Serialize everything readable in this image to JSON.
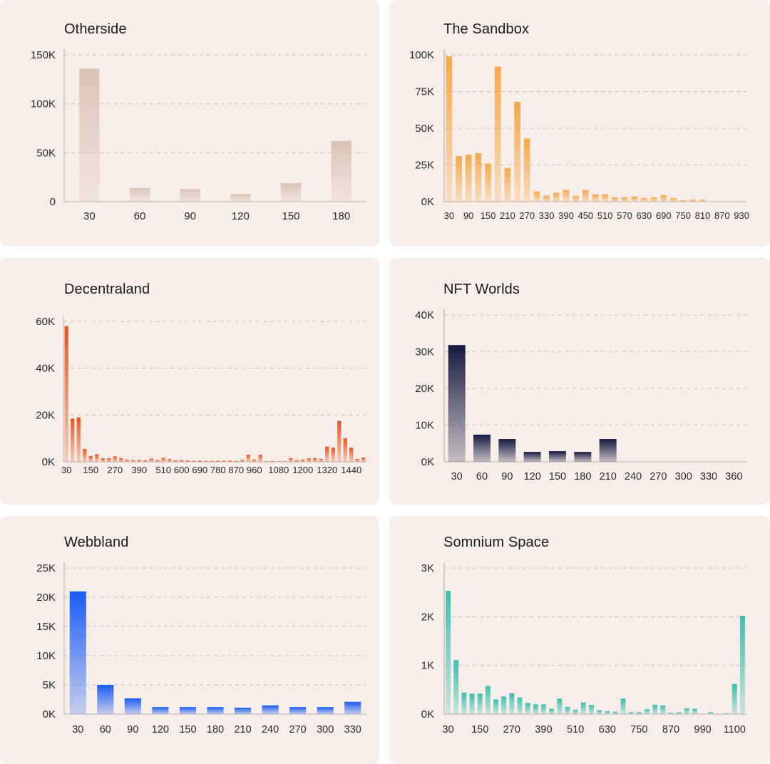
{
  "chart_data": [
    {
      "id": "otherside",
      "type": "bar",
      "title": "Otherside",
      "color": "#d9c4ba",
      "ylim": [
        0,
        150000
      ],
      "yticks": [
        0,
        50000,
        100000,
        150000
      ],
      "ytick_labels": [
        "0",
        "50K",
        "100K",
        "150K"
      ],
      "categories": [
        30,
        60,
        90,
        120,
        150,
        180
      ],
      "values": [
        136000,
        14000,
        13000,
        8000,
        19000,
        62000
      ],
      "xtick_labels": [
        "30",
        "60",
        "90",
        "120",
        "150",
        "180"
      ],
      "grid": true
    },
    {
      "id": "sandbox",
      "type": "bar",
      "title": "The Sandbox",
      "color": "#f5a94a",
      "ylim": [
        0,
        100000
      ],
      "yticks": [
        0,
        25000,
        50000,
        75000,
        100000
      ],
      "ytick_labels": [
        "0K",
        "25K",
        "50K",
        "75K",
        "100K"
      ],
      "categories": [
        30,
        60,
        90,
        120,
        150,
        180,
        210,
        240,
        270,
        300,
        330,
        360,
        390,
        420,
        450,
        480,
        510,
        540,
        570,
        600,
        630,
        660,
        690,
        720,
        750,
        780,
        810,
        840,
        870,
        900,
        930
      ],
      "values": [
        99000,
        31000,
        32000,
        33000,
        26000,
        92000,
        23000,
        68000,
        43000,
        7000,
        4000,
        6000,
        8000,
        4000,
        8000,
        5000,
        5000,
        3000,
        3000,
        3500,
        2500,
        3000,
        4500,
        2500,
        1000,
        1500,
        1500,
        0,
        0,
        0,
        0
      ],
      "xtick_labels": [
        "30",
        "90",
        "150",
        "210",
        "270",
        "330",
        "390",
        "450",
        "510",
        "570",
        "630",
        "690",
        "750",
        "810",
        "870",
        "930"
      ],
      "grid": true
    },
    {
      "id": "decentraland",
      "type": "bar",
      "title": "Decentraland",
      "color": "#ea5420",
      "ylim": [
        0,
        60000
      ],
      "yticks": [
        0,
        20000,
        40000,
        60000
      ],
      "ytick_labels": [
        "0K",
        "20K",
        "40K",
        "60K"
      ],
      "categories": [
        30,
        60,
        90,
        120,
        150,
        180,
        210,
        240,
        270,
        300,
        330,
        360,
        390,
        420,
        450,
        480,
        510,
        540,
        570,
        600,
        630,
        660,
        690,
        720,
        750,
        780,
        810,
        840,
        870,
        900,
        930,
        960,
        990,
        1020,
        1050,
        1080,
        1110,
        1140,
        1170,
        1200,
        1230,
        1260,
        1290,
        1320,
        1350,
        1380,
        1410,
        1440,
        1470,
        1500
      ],
      "values": [
        58000,
        18500,
        19000,
        5500,
        2500,
        3200,
        1500,
        1500,
        2300,
        1600,
        1000,
        700,
        800,
        700,
        1400,
        800,
        1700,
        1200,
        700,
        700,
        600,
        500,
        500,
        400,
        300,
        500,
        500,
        500,
        400,
        800,
        3000,
        1000,
        3000,
        200,
        300,
        200,
        200,
        1600,
        700,
        1000,
        1500,
        1600,
        1200,
        6500,
        6000,
        17500,
        10000,
        6000,
        1200,
        1800
      ],
      "xtick_labels": [
        "30",
        "150",
        "270",
        "390",
        "510",
        "600",
        "690",
        "780",
        "870",
        "960",
        "1080",
        "1200",
        "1320",
        "1440"
      ],
      "grid": true
    },
    {
      "id": "nftworlds",
      "type": "bar",
      "title": "NFT Worlds",
      "color": "#161a40",
      "ylim": [
        0,
        40000
      ],
      "yticks": [
        0,
        10000,
        20000,
        30000,
        40000
      ],
      "ytick_labels": [
        "0K",
        "10K",
        "20K",
        "30K",
        "40K"
      ],
      "categories": [
        30,
        60,
        90,
        120,
        150,
        180,
        210,
        240,
        270,
        300,
        330,
        360
      ],
      "values": [
        31800,
        7400,
        6200,
        2700,
        2900,
        2700,
        6200,
        0,
        0,
        0,
        0,
        0
      ],
      "xtick_labels": [
        "30",
        "60",
        "90",
        "120",
        "150",
        "180",
        "210",
        "240",
        "270",
        "300",
        "330",
        "360"
      ],
      "grid": true
    },
    {
      "id": "webbland",
      "type": "bar",
      "title": "Webbland",
      "color": "#1a5cf5",
      "ylim": [
        0,
        25000
      ],
      "yticks": [
        0,
        5000,
        10000,
        15000,
        20000,
        25000
      ],
      "ytick_labels": [
        "0K",
        "5K",
        "10K",
        "15K",
        "20K",
        "25K"
      ],
      "categories": [
        30,
        60,
        90,
        120,
        150,
        180,
        210,
        240,
        270,
        300,
        330
      ],
      "values": [
        21000,
        5000,
        2700,
        1200,
        1200,
        1200,
        1100,
        1500,
        1200,
        1200,
        2100
      ],
      "xtick_labels": [
        "30",
        "60",
        "90",
        "120",
        "150",
        "180",
        "210",
        "240",
        "270",
        "300",
        "330"
      ],
      "grid": true
    },
    {
      "id": "somnium",
      "type": "bar",
      "title": "Somnium Space",
      "color": "#3cbfb0",
      "ylim": [
        0,
        3000
      ],
      "yticks": [
        0,
        1000,
        2000,
        3000
      ],
      "ytick_labels": [
        "0K",
        "1K",
        "2K",
        "3K"
      ],
      "categories": [
        30,
        60,
        90,
        120,
        150,
        180,
        210,
        240,
        270,
        300,
        330,
        360,
        390,
        420,
        450,
        480,
        510,
        540,
        570,
        600,
        630,
        660,
        690,
        720,
        750,
        780,
        810,
        840,
        870,
        900,
        930,
        960,
        990,
        1020,
        1050,
        1080,
        1100,
        1130
      ],
      "values": [
        2530,
        1110,
        440,
        420,
        420,
        580,
        300,
        360,
        430,
        340,
        230,
        200,
        200,
        110,
        320,
        150,
        90,
        240,
        190,
        80,
        60,
        50,
        320,
        40,
        40,
        100,
        190,
        180,
        30,
        40,
        120,
        110,
        0,
        40,
        0,
        20,
        620,
        2020
      ],
      "xtick_labels": [
        "30",
        "150",
        "270",
        "390",
        "510",
        "630",
        "750",
        "870",
        "990",
        "1100"
      ],
      "grid": true
    }
  ]
}
